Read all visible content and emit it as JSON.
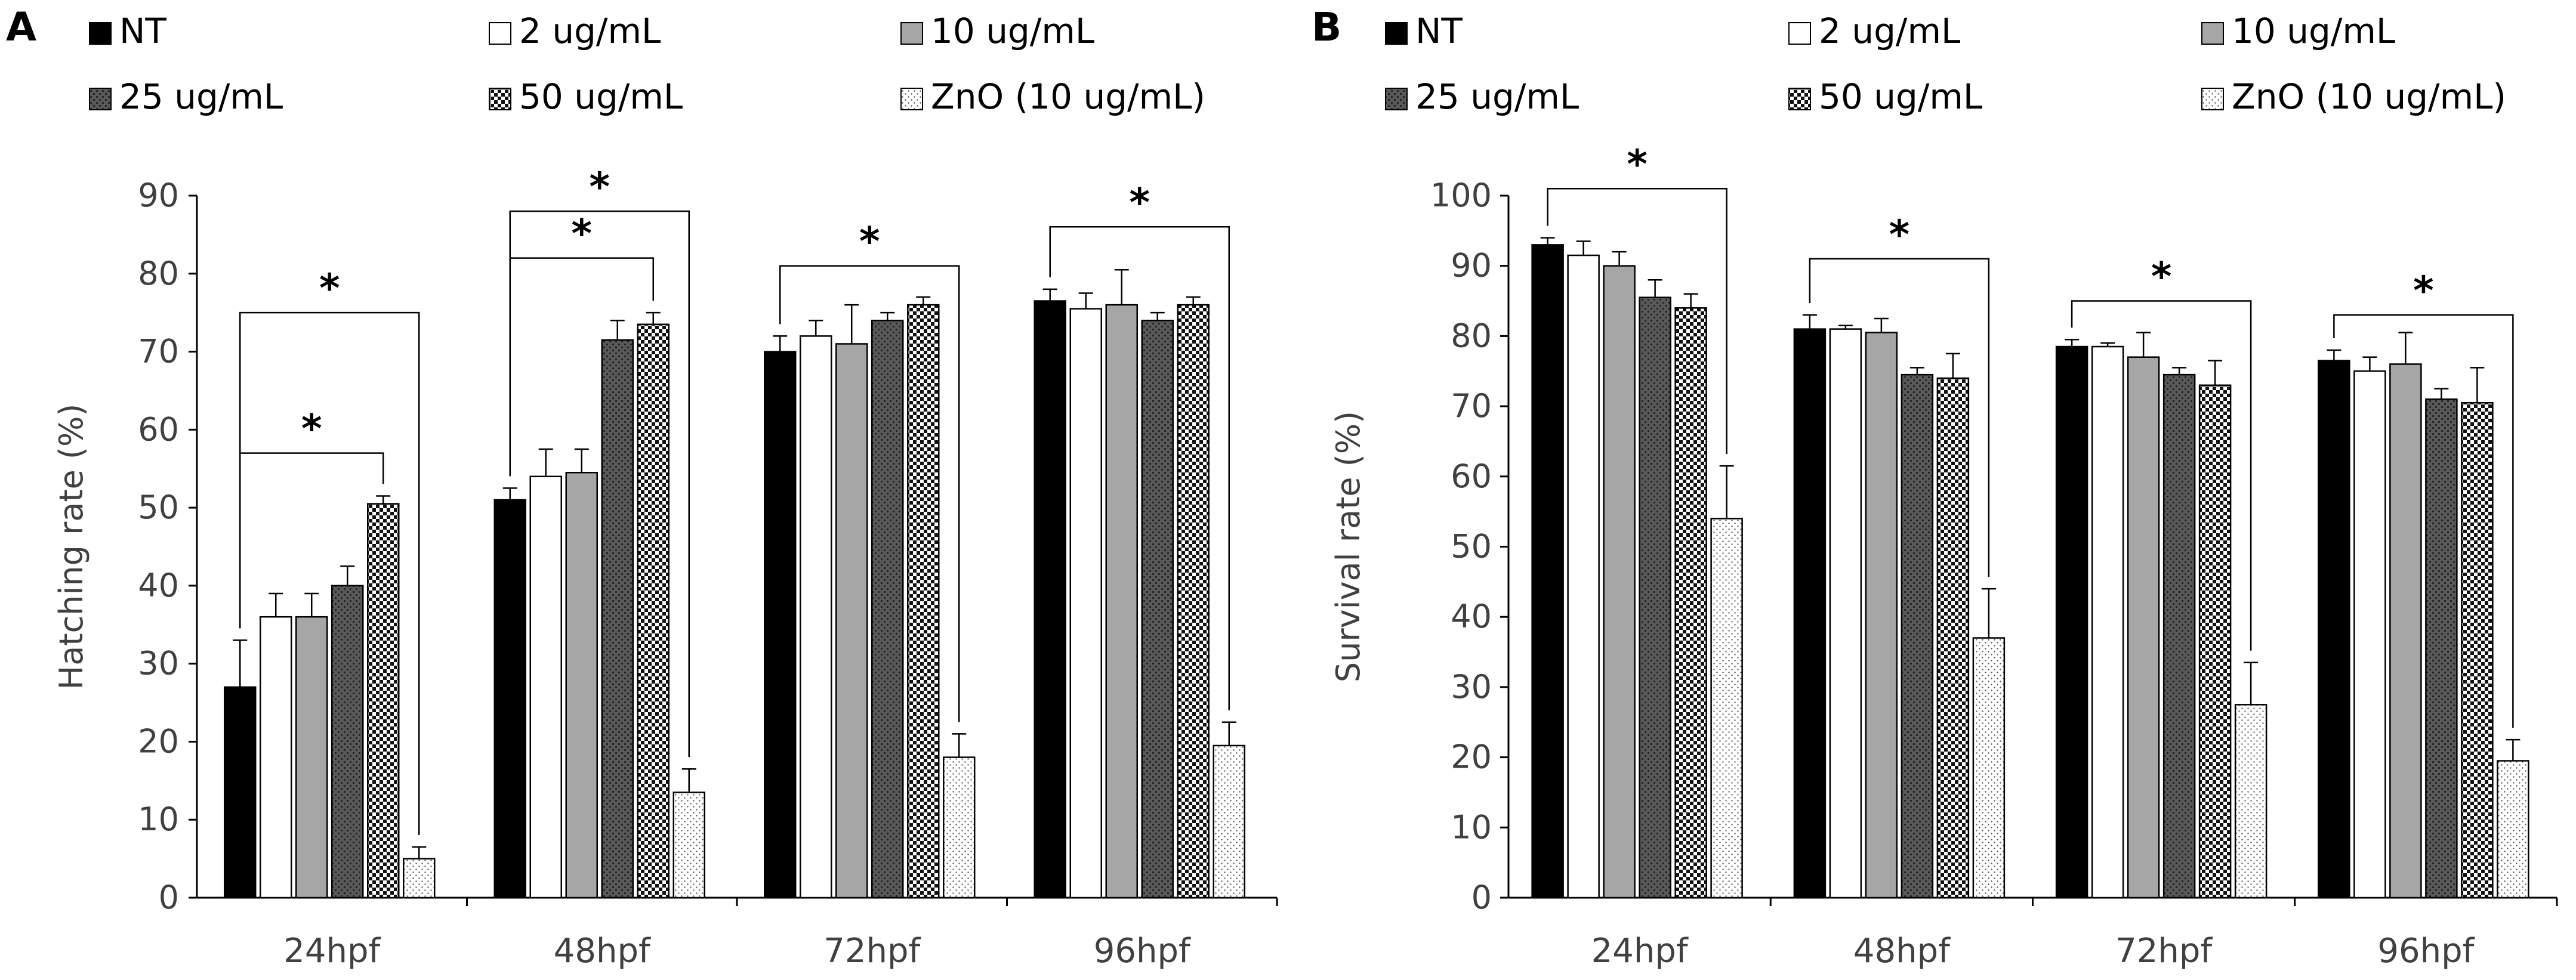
{
  "figure": {
    "legend": [
      {
        "label": "NT",
        "pattern": "solid-black"
      },
      {
        "label": "2 ug/mL",
        "pattern": "white"
      },
      {
        "label": "10 ug/mL",
        "pattern": "solid-gray"
      },
      {
        "label": "25 ug/mL",
        "pattern": "dark-dots"
      },
      {
        "label": "50 ug/mL",
        "pattern": "checker"
      },
      {
        "label": "ZnO (10 ug/mL)",
        "pattern": "light-dots"
      }
    ],
    "significance_marker": "*"
  },
  "colors": {
    "ink": "#000000",
    "axis": "#000000",
    "tick_text": "#404040",
    "nt": "#000000",
    "c2": "#ffffff",
    "c10": "#a6a6a6",
    "c25": "#595959",
    "c50": "#3a3a3a",
    "zno": "#f2f2f2"
  },
  "chart_data": [
    {
      "panel_label": "A",
      "type": "bar",
      "title": "",
      "xlabel": "",
      "ylabel": "Hatching rate (%)",
      "ylim": [
        0,
        90
      ],
      "yticks": [
        0,
        10,
        20,
        30,
        40,
        50,
        60,
        70,
        80,
        90
      ],
      "categories": [
        "24hpf",
        "48hpf",
        "72hpf",
        "96hpf"
      ],
      "series": [
        {
          "name": "NT",
          "values": [
            27,
            51,
            70,
            76.5
          ],
          "errors": [
            6,
            1.5,
            2,
            1.5
          ]
        },
        {
          "name": "2 ug/mL",
          "values": [
            36,
            54,
            72,
            75.5
          ],
          "errors": [
            3,
            3.5,
            2,
            2
          ]
        },
        {
          "name": "10 ug/mL",
          "values": [
            36,
            54.5,
            71,
            76
          ],
          "errors": [
            3,
            3,
            5,
            4.5
          ]
        },
        {
          "name": "25 ug/mL",
          "values": [
            40,
            71.5,
            74,
            74
          ],
          "errors": [
            2.5,
            2.5,
            1,
            1
          ]
        },
        {
          "name": "50 ug/mL",
          "values": [
            50.5,
            73.5,
            76,
            76
          ],
          "errors": [
            1,
            1.5,
            1,
            1
          ]
        },
        {
          "name": "ZnO (10 ug/mL)",
          "values": [
            5,
            13.5,
            18,
            19.5
          ],
          "errors": [
            1.5,
            3,
            3,
            3
          ]
        }
      ],
      "significance": [
        {
          "category": "24hpf",
          "from_series": "NT",
          "to_series": "50 ug/mL",
          "level": 57,
          "star": "*"
        },
        {
          "category": "24hpf",
          "from_series": "NT",
          "to_series": "ZnO (10 ug/mL)",
          "level": 75,
          "star": "*"
        },
        {
          "category": "48hpf",
          "from_series": "NT",
          "to_series": "50 ug/mL",
          "level": 82,
          "star": "*"
        },
        {
          "category": "48hpf",
          "from_series": "NT",
          "to_series": "ZnO (10 ug/mL)",
          "level": 88,
          "star": "*"
        },
        {
          "category": "72hpf",
          "from_series": "NT",
          "to_series": "ZnO (10 ug/mL)",
          "level": 81,
          "star": "*"
        },
        {
          "category": "96hpf",
          "from_series": "NT",
          "to_series": "ZnO (10 ug/mL)",
          "level": 86,
          "star": "*"
        }
      ]
    },
    {
      "panel_label": "B",
      "type": "bar",
      "title": "",
      "xlabel": "",
      "ylabel": "Survival rate (%)",
      "ylim": [
        0,
        100
      ],
      "yticks": [
        0,
        10,
        20,
        30,
        40,
        50,
        60,
        70,
        80,
        90,
        100
      ],
      "categories": [
        "24hpf",
        "48hpf",
        "72hpf",
        "96hpf"
      ],
      "series": [
        {
          "name": "NT",
          "values": [
            93,
            81,
            78.5,
            76.5
          ],
          "errors": [
            1,
            2,
            1,
            1.5
          ]
        },
        {
          "name": "2 ug/mL",
          "values": [
            91.5,
            81,
            78.5,
            75
          ],
          "errors": [
            2,
            0.5,
            0.5,
            2
          ]
        },
        {
          "name": "10 ug/mL",
          "values": [
            90,
            80.5,
            77,
            76
          ],
          "errors": [
            2,
            2,
            3.5,
            4.5
          ]
        },
        {
          "name": "25 ug/mL",
          "values": [
            85.5,
            74.5,
            74.5,
            71
          ],
          "errors": [
            2.5,
            1,
            1,
            1.5
          ]
        },
        {
          "name": "50 ug/mL",
          "values": [
            84,
            74,
            73,
            70.5
          ],
          "errors": [
            2,
            3.5,
            3.5,
            5
          ]
        },
        {
          "name": "ZnO (10 ug/mL)",
          "values": [
            54,
            37,
            27.5,
            19.5
          ],
          "errors": [
            7.5,
            7,
            6,
            3
          ]
        }
      ],
      "significance": [
        {
          "category": "24hpf",
          "from_series": "NT",
          "to_series": "ZnO (10 ug/mL)",
          "level": 101,
          "star": "*"
        },
        {
          "category": "48hpf",
          "from_series": "NT",
          "to_series": "ZnO (10 ug/mL)",
          "level": 91,
          "star": "*"
        },
        {
          "category": "72hpf",
          "from_series": "NT",
          "to_series": "ZnO (10 ug/mL)",
          "level": 85,
          "star": "*"
        },
        {
          "category": "96hpf",
          "from_series": "NT",
          "to_series": "ZnO (10 ug/mL)",
          "level": 83,
          "star": "*"
        }
      ]
    }
  ]
}
